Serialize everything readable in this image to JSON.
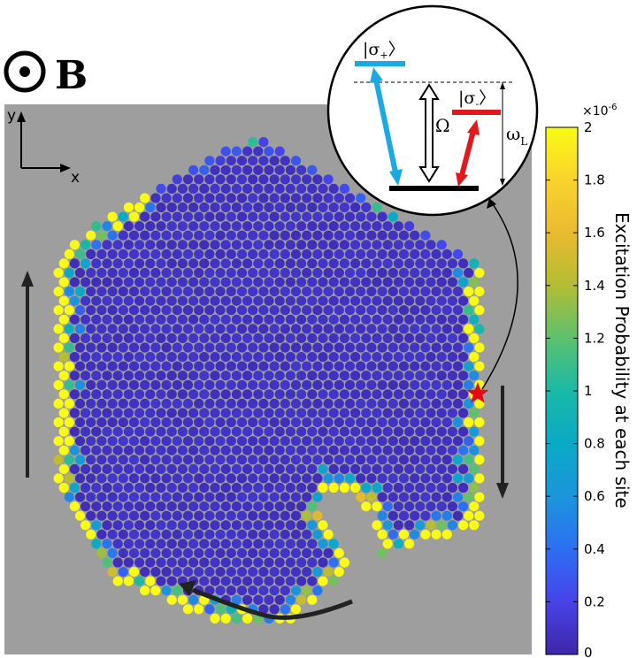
{
  "chart_data": {
    "type": "scatter",
    "title": "",
    "field_symbol": "B",
    "axes_labels": {
      "x": "x",
      "y": "y"
    },
    "colorbar": {
      "label": "Excitation Probability  at each site",
      "exponent": "×10",
      "exponent_power": "-6",
      "range": [
        0,
        2
      ],
      "ticks": [
        {
          "value": 0,
          "label": "0"
        },
        {
          "value": 0.2,
          "label": "0.2"
        },
        {
          "value": 0.4,
          "label": "0.4"
        },
        {
          "value": 0.6,
          "label": "0.6"
        },
        {
          "value": 0.8,
          "label": "0.8"
        },
        {
          "value": 1.0,
          "label": "1"
        },
        {
          "value": 1.2,
          "label": "1.2"
        },
        {
          "value": 1.4,
          "label": "1.4"
        },
        {
          "value": 1.6,
          "label": "1.6"
        },
        {
          "value": 1.8,
          "label": "1.8"
        },
        {
          "value": 2.0,
          "label": "2"
        }
      ],
      "colormap": [
        "#3e26a8",
        "#4743e8",
        "#2d6ff3",
        "#1b95db",
        "#09aac6",
        "#1ab9a6",
        "#5cc16e",
        "#b3bd33",
        "#eaba30",
        "#fad32d",
        "#f9fb15"
      ]
    },
    "edge_values": {
      "bulk": 0.05,
      "edge": 2.0,
      "edge_inner_min": 0.4,
      "edge_inner_max": 1.6
    },
    "inset": {
      "levels": [
        {
          "label_base": "σ",
          "label_sub": "+",
          "color": "#1aa9e1"
        },
        {
          "label_base": "σ",
          "label_sub": "-",
          "color": "#e0191c"
        }
      ],
      "omega_label": "Ω",
      "omega_L_base": "ω",
      "omega_L_sub": "L"
    },
    "marker": "star"
  }
}
